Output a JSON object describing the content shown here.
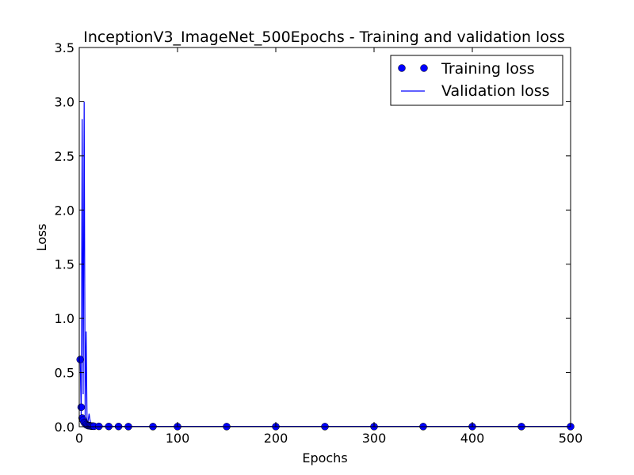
{
  "chart_data": {
    "type": "line",
    "title": "InceptionV3_ImageNet_500Epochs - Training and validation loss",
    "xlabel": "Epochs",
    "ylabel": "Loss",
    "xlim": [
      0,
      500
    ],
    "ylim": [
      0,
      3.5
    ],
    "xticks": [
      "0",
      "100",
      "200",
      "300",
      "400",
      "500"
    ],
    "yticks": [
      "0.0",
      "0.5",
      "1.0",
      "1.5",
      "2.0",
      "2.5",
      "3.0",
      "3.5"
    ],
    "grid": false,
    "legend_position": "top-right",
    "series": [
      {
        "name": "Training loss",
        "style": "markers",
        "color": "#0000ff",
        "x": [
          1,
          2,
          3,
          4,
          5,
          6,
          7,
          8,
          9,
          10,
          11,
          12,
          13,
          14,
          15,
          20,
          30,
          40,
          50,
          75,
          100,
          150,
          200,
          250,
          300,
          350,
          400,
          450,
          500
        ],
        "y": [
          0.62,
          0.18,
          0.08,
          0.06,
          0.04,
          0.03,
          0.02,
          0.015,
          0.01,
          0.01,
          0.008,
          0.006,
          0.005,
          0.005,
          0.004,
          0.003,
          0.002,
          0.002,
          0.001,
          0.001,
          0.001,
          0.001,
          0.001,
          0.001,
          0.001,
          0.001,
          0.001,
          0.001,
          0.001
        ]
      },
      {
        "name": "Validation loss",
        "style": "line",
        "color": "#0000ff",
        "x": [
          1,
          2,
          3,
          4,
          5,
          6,
          7,
          8,
          9,
          10,
          11,
          12,
          13,
          14,
          15,
          20,
          30,
          50,
          100,
          200,
          300,
          400,
          500
        ],
        "y": [
          0.6,
          0.1,
          2.84,
          0.3,
          3.0,
          0.1,
          0.88,
          0.02,
          0.05,
          0.12,
          0.06,
          0.02,
          0.01,
          0.01,
          0.01,
          0.005,
          0.004,
          0.003,
          0.003,
          0.003,
          0.003,
          0.003,
          0.003
        ]
      }
    ]
  }
}
